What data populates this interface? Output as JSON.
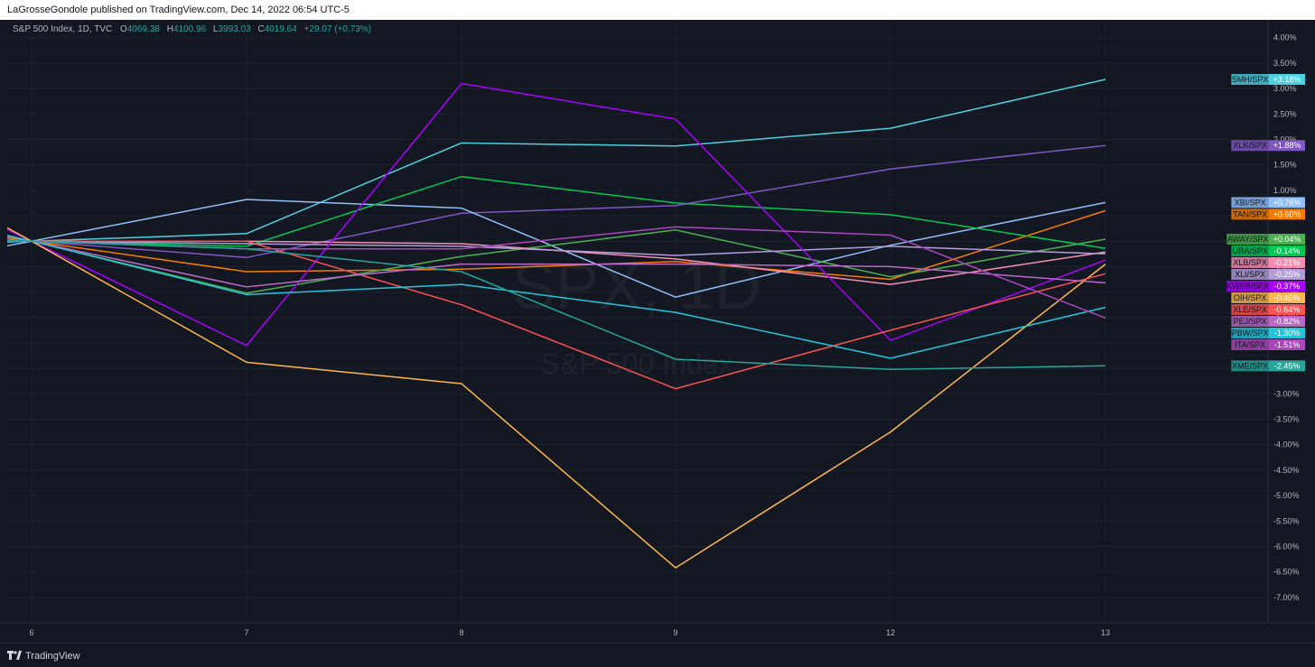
{
  "header": {
    "published": "LaGrosseGondole published on TradingView.com, Dec 14, 2022 06:54 UTC-5"
  },
  "legend": {
    "symbol": "S&P 500 Index, 1D, TVC",
    "o_label": "O",
    "o_value": "4069.38",
    "h_label": "H",
    "h_value": "4100.96",
    "l_label": "L",
    "l_value": "3993.03",
    "c_label": "C",
    "c_value": "4019.64",
    "change": "+29.07 (+0.73%)"
  },
  "watermark": {
    "symbol": "SPX, 1D",
    "name": "S&P 500 Index"
  },
  "footer": {
    "brand": "TradingView"
  },
  "chart_data": {
    "type": "line",
    "x": [
      "6",
      "7",
      "8",
      "9",
      "12",
      "13"
    ],
    "ylim": [
      -7.5,
      4.35
    ],
    "y_ticks": [
      "4.00%",
      "3.50%",
      "3.00%",
      "2.50%",
      "2.00%",
      "1.50%",
      "1.00%",
      "0.50%",
      "0.00%",
      "-0.50%",
      "-1.00%",
      "-1.50%",
      "-2.00%",
      "-2.50%",
      "-3.00%",
      "-3.50%",
      "-4.00%",
      "-4.50%",
      "-5.00%",
      "-5.50%",
      "-6.00%",
      "-6.50%",
      "-7.00%"
    ],
    "grid": true,
    "series": [
      {
        "name": "SMH/SPX",
        "label": "+3.18%",
        "color": "#4dd0e1",
        "values": [
          0.0,
          0.15,
          1.93,
          1.87,
          2.22,
          3.18
        ]
      },
      {
        "name": "XLK/SPX",
        "label": "+1.88%",
        "color": "#7e57c2",
        "values": [
          0.0,
          -0.32,
          0.55,
          0.7,
          1.42,
          1.88
        ]
      },
      {
        "name": "XBI/SPX",
        "label": "+0.76%",
        "color": "#90bff9",
        "values": [
          0.0,
          0.82,
          0.65,
          -1.1,
          -0.08,
          0.76
        ]
      },
      {
        "name": "TAN/SPX",
        "label": "+0.60%",
        "color": "#f57c00",
        "values": [
          0.0,
          -0.6,
          -0.55,
          -0.4,
          -0.75,
          0.6
        ]
      },
      {
        "name": "AWAY/SPX",
        "label": "+0.04%",
        "color": "#4caf50",
        "values": [
          0.0,
          -1.02,
          -0.3,
          0.22,
          -0.7,
          0.04
        ]
      },
      {
        "name": "URA/SPX",
        "label": "-0.14%",
        "color": "#00c853",
        "values": [
          0.0,
          -0.1,
          1.27,
          0.75,
          0.52,
          -0.14
        ]
      },
      {
        "name": "XLB/SPX",
        "label": "-0.21%",
        "color": "#f48fb1",
        "values": [
          0.0,
          0.0,
          -0.05,
          -0.35,
          -0.85,
          -0.21
        ]
      },
      {
        "name": "XLI/SPX",
        "label": "-0.25%",
        "color": "#b39ddb",
        "values": [
          0.0,
          -0.05,
          -0.1,
          -0.28,
          -0.1,
          -0.25
        ]
      },
      {
        "name": "KWEB/SPX",
        "label": "-0.37%",
        "color": "#aa00ff",
        "values": [
          0.0,
          -2.05,
          3.1,
          2.4,
          -1.95,
          -0.37
        ]
      },
      {
        "name": "OIH/SPX",
        "label": "-0.45%",
        "color": "#ffb74d",
        "values": [
          0.0,
          -2.38,
          -2.8,
          -6.42,
          -3.75,
          -0.45
        ]
      },
      {
        "name": "XLE/SPX",
        "label": "-0.64%",
        "color": "#ff5252",
        "values": [
          0.0,
          0.0,
          -1.25,
          -2.9,
          -1.75,
          -0.64
        ]
      },
      {
        "name": "PEJ/SPX",
        "label": "-0.82%",
        "color": "#ba68c8",
        "values": [
          0.0,
          -0.9,
          -0.45,
          -0.45,
          -0.5,
          -0.82
        ]
      },
      {
        "name": "PBW/SPX",
        "label": "-1.30%",
        "color": "#26c6da",
        "values": [
          0.0,
          -1.05,
          -0.85,
          -1.4,
          -2.3,
          -1.3
        ]
      },
      {
        "name": "ITA/SPX",
        "label": "-1.51%",
        "color": "#ab47bc",
        "values": [
          0.0,
          -0.15,
          -0.15,
          0.28,
          0.12,
          -1.51
        ]
      },
      {
        "name": "XME/SPX",
        "label": "-2.45%",
        "color": "#26a69a",
        "values": [
          0.0,
          -0.15,
          -0.6,
          -2.32,
          -2.52,
          -2.45
        ]
      }
    ]
  }
}
